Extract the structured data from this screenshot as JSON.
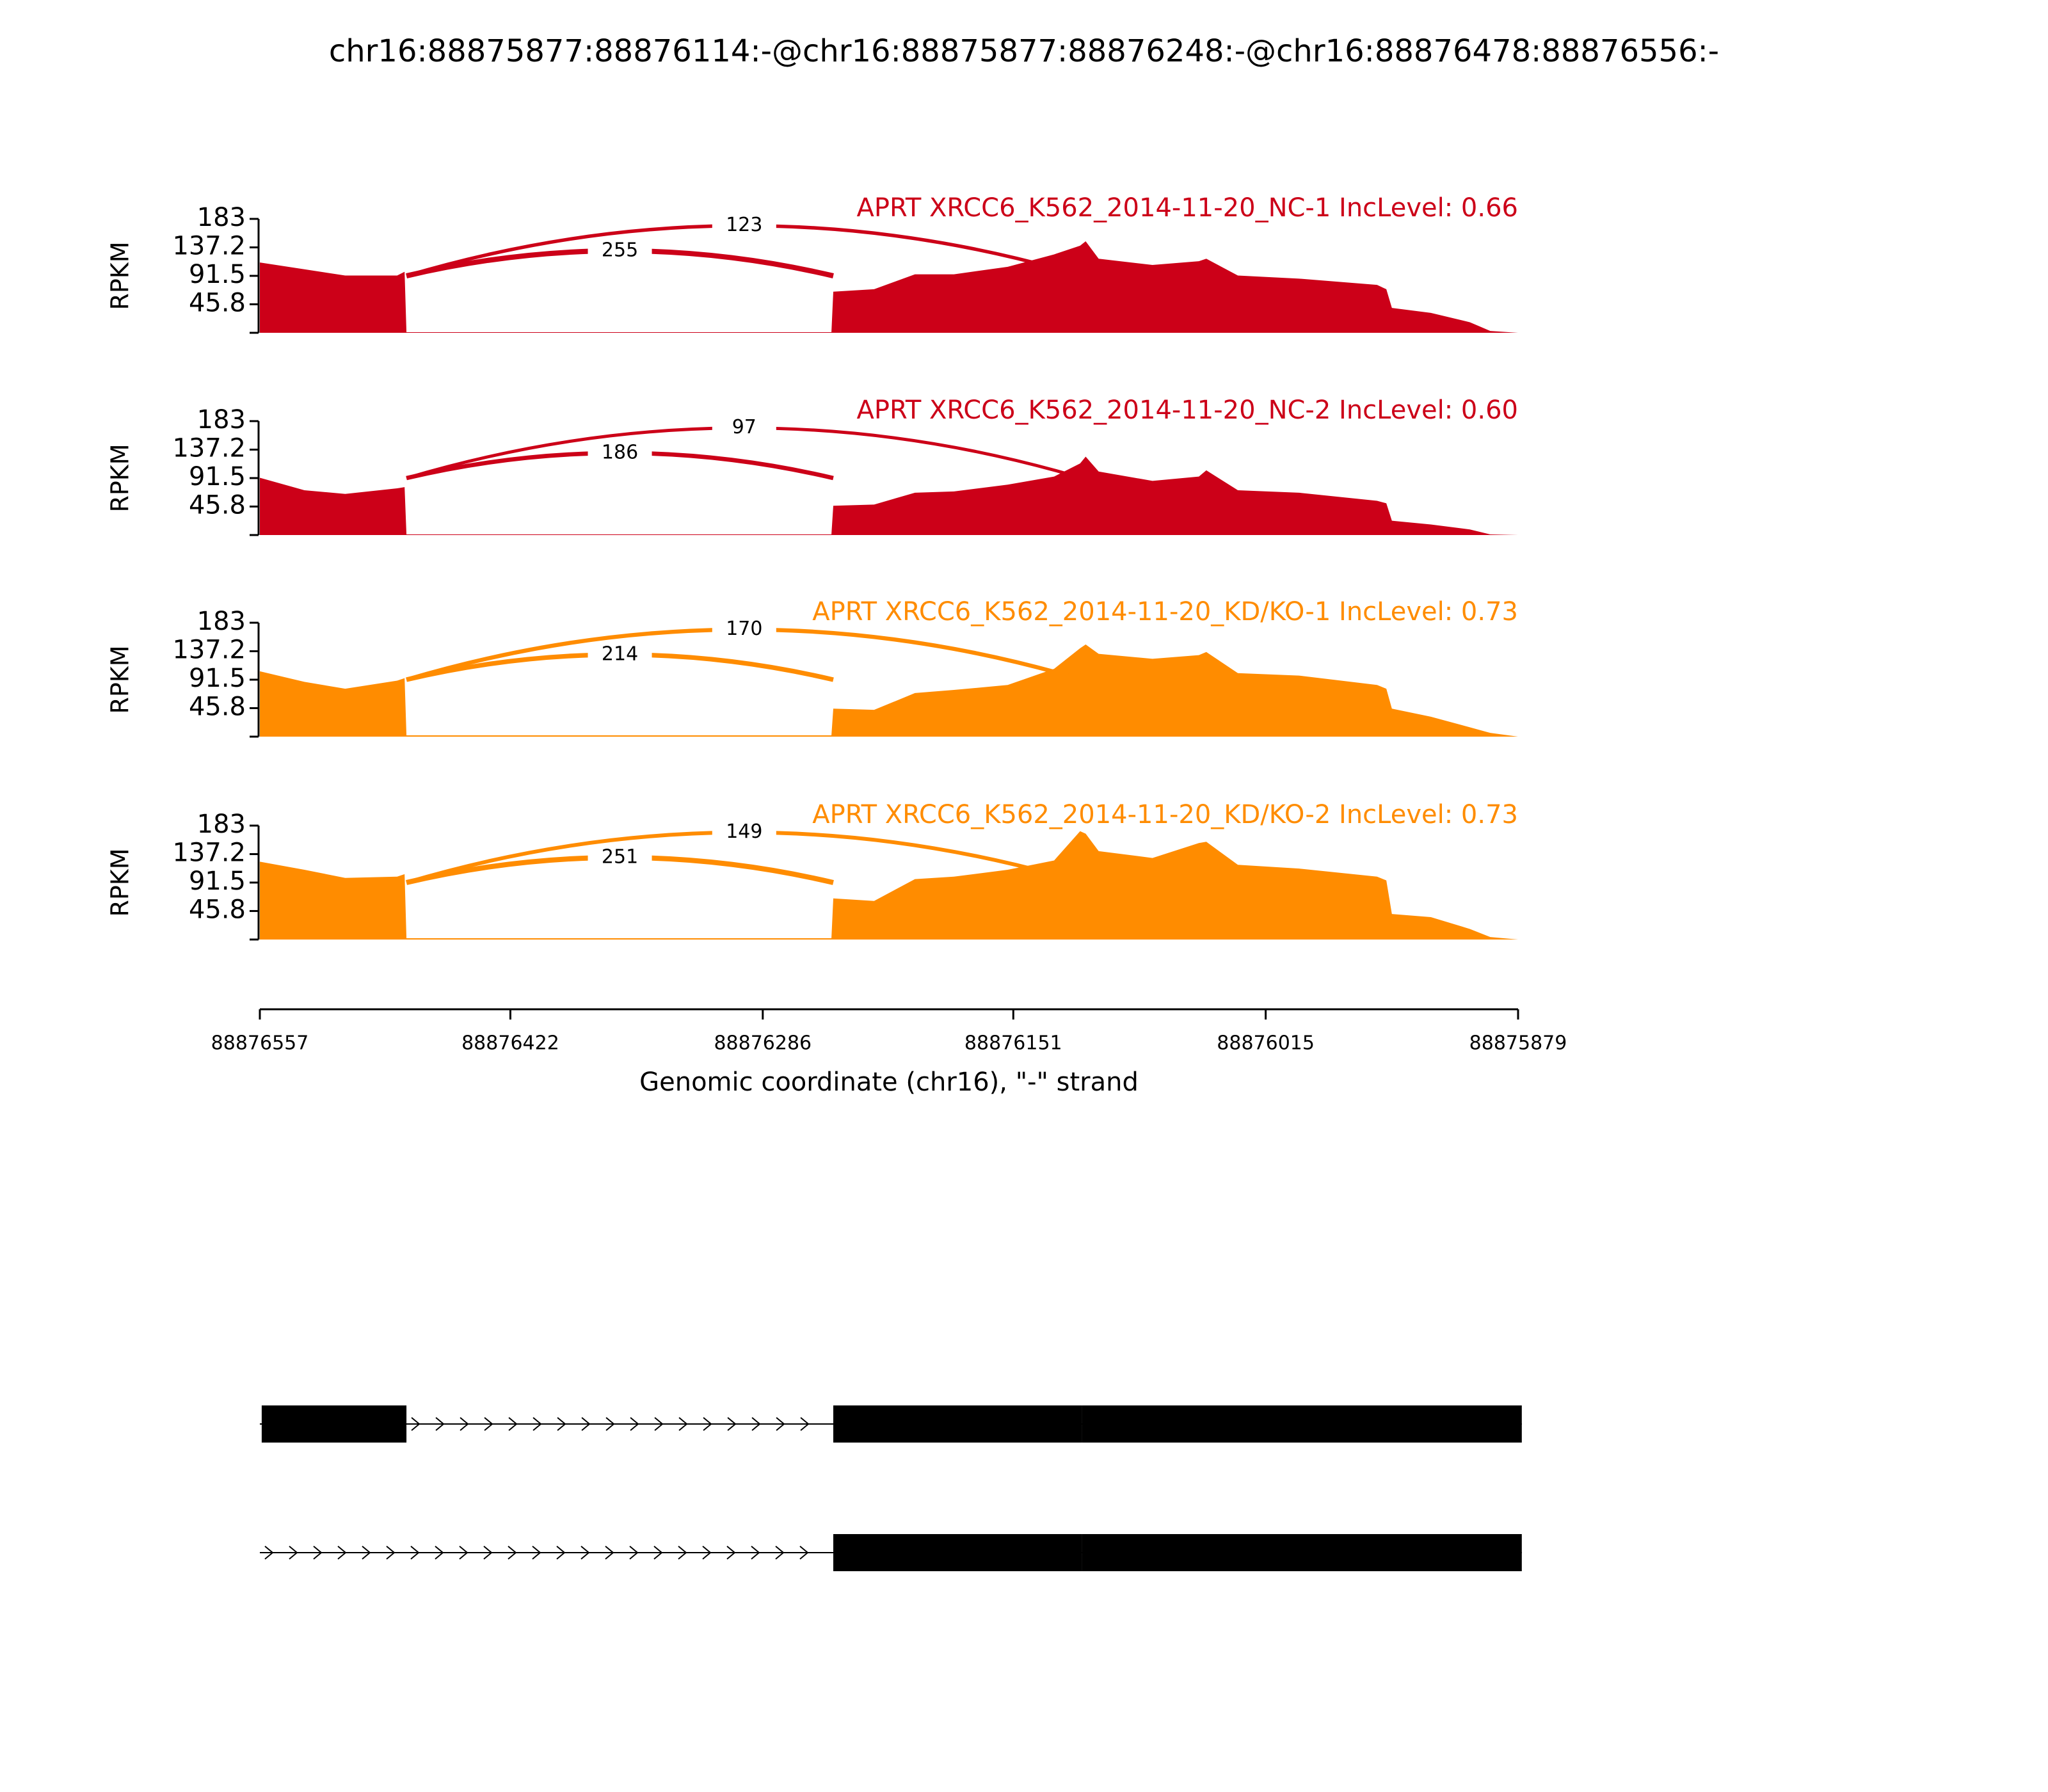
{
  "title": "chr16:88875877:88876114:-@chr16:88875877:88876248:-@chr16:88876478:88876556:-",
  "chart_data": [
    {
      "type": "area",
      "title": "APRT XRCC6_K562_2014-11-20_NC-1 IncLevel: 0.66",
      "ylabel": "RPKM",
      "color": "#cc0018",
      "xlim": [
        88876557,
        88875879
      ],
      "ylim": [
        0,
        183
      ],
      "yticks": [
        45.8,
        91.5,
        137.2,
        183
      ],
      "x": [
        88876557,
        88876533,
        88876511,
        88876483,
        88876479,
        88876478,
        88876369,
        88876254,
        88876249,
        88876248,
        88876226,
        88876204,
        88876183,
        88876154,
        88876129,
        88876115,
        88876112,
        88876105,
        88876076,
        88876051,
        88876047,
        88876030,
        88875997,
        88875955,
        88875950,
        88875947,
        88875926,
        88875905,
        88875894,
        88875879
      ],
      "values": [
        113,
        102,
        92,
        92,
        98,
        1,
        1,
        1,
        1,
        66,
        70,
        94,
        94,
        106,
        126,
        140,
        147,
        119,
        109,
        115,
        119,
        92,
        87,
        77,
        70,
        40,
        32,
        17,
        3,
        0
      ],
      "junctions": [
        {
          "x": [
            88876478,
            88876248
          ],
          "count": 255
        },
        {
          "x": [
            88876478,
            88876114
          ],
          "count": 123
        }
      ]
    },
    {
      "type": "area",
      "title": "APRT XRCC6_K562_2014-11-20_NC-2 IncLevel: 0.60",
      "ylabel": "RPKM",
      "color": "#cc0018",
      "xlim": [
        88876557,
        88875879
      ],
      "ylim": [
        0,
        183
      ],
      "yticks": [
        45.8,
        91.5,
        137.2,
        183
      ],
      "x": [
        88876557,
        88876533,
        88876511,
        88876483,
        88876479,
        88876478,
        88876369,
        88876254,
        88876249,
        88876248,
        88876226,
        88876204,
        88876183,
        88876154,
        88876129,
        88876115,
        88876112,
        88876105,
        88876076,
        88876051,
        88876047,
        88876030,
        88875997,
        88875955,
        88875950,
        88875947,
        88875926,
        88875905,
        88875894,
        88875879
      ],
      "values": [
        92,
        72,
        66,
        75,
        77,
        1,
        1,
        1,
        1,
        47,
        49,
        68,
        70,
        81,
        94,
        115,
        126,
        102,
        87,
        94,
        104,
        72,
        68,
        55,
        51,
        23,
        17,
        9,
        1,
        0
      ],
      "junctions": [
        {
          "x": [
            88876478,
            88876248
          ],
          "count": 186
        },
        {
          "x": [
            88876478,
            88876114
          ],
          "count": 97
        }
      ]
    },
    {
      "type": "area",
      "title": "APRT XRCC6_K562_2014-11-20_KD/KO-1 IncLevel: 0.73",
      "ylabel": "RPKM",
      "color": "#ff8c00",
      "xlim": [
        88876557,
        88875879
      ],
      "ylim": [
        0,
        183
      ],
      "yticks": [
        45.8,
        91.5,
        137.2,
        183
      ],
      "x": [
        88876557,
        88876533,
        88876511,
        88876483,
        88876479,
        88876478,
        88876369,
        88876254,
        88876249,
        88876248,
        88876226,
        88876204,
        88876183,
        88876154,
        88876129,
        88876115,
        88876112,
        88876105,
        88876076,
        88876051,
        88876047,
        88876030,
        88875997,
        88875955,
        88875950,
        88875947,
        88875926,
        88875905,
        88875894,
        88875879
      ],
      "values": [
        105,
        88,
        77,
        90,
        94,
        2,
        2,
        2,
        2,
        45,
        43,
        70,
        75,
        83,
        109,
        142,
        148,
        133,
        125,
        131,
        136,
        102,
        98,
        83,
        77,
        45,
        32,
        15,
        6,
        0
      ],
      "junctions": [
        {
          "x": [
            88876478,
            88876248
          ],
          "count": 214
        },
        {
          "x": [
            88876478,
            88876114
          ],
          "count": 170
        }
      ]
    },
    {
      "type": "area",
      "title": "APRT XRCC6_K562_2014-11-20_KD/KO-2 IncLevel: 0.73",
      "ylabel": "RPKM",
      "color": "#ff8c00",
      "xlim": [
        88876557,
        88875879
      ],
      "ylim": [
        0,
        183
      ],
      "yticks": [
        45.8,
        91.5,
        137.2,
        183
      ],
      "xticks": [
        88876557,
        88876422,
        88876286,
        88876151,
        88876015,
        88875879
      ],
      "xlabel": "Genomic coordinate (chr16), \"-\" strand",
      "x": [
        88876557,
        88876533,
        88876511,
        88876483,
        88876479,
        88876478,
        88876369,
        88876254,
        88876249,
        88876248,
        88876226,
        88876204,
        88876183,
        88876154,
        88876129,
        88876115,
        88876112,
        88876105,
        88876076,
        88876051,
        88876047,
        88876030,
        88875997,
        88875955,
        88875950,
        88875947,
        88875926,
        88875905,
        88875894,
        88875879
      ],
      "values": [
        125,
        112,
        99,
        101,
        105,
        2,
        2,
        2,
        2,
        66,
        62,
        97,
        101,
        112,
        127,
        174,
        170,
        142,
        131,
        155,
        157,
        120,
        114,
        101,
        95,
        41,
        36,
        17,
        4,
        0
      ],
      "junctions": [
        {
          "x": [
            88876478,
            88876248
          ],
          "count": 251
        },
        {
          "x": [
            88876478,
            88876114
          ],
          "count": 149
        }
      ]
    }
  ],
  "gene_model": {
    "transcripts": [
      {
        "exons": [
          [
            88876556,
            88876478
          ],
          [
            88876248,
            88876114
          ],
          [
            88876114,
            88875877
          ]
        ]
      },
      {
        "exons": [
          [
            88876248,
            88876114
          ],
          [
            88876114,
            88875877
          ]
        ]
      }
    ]
  }
}
